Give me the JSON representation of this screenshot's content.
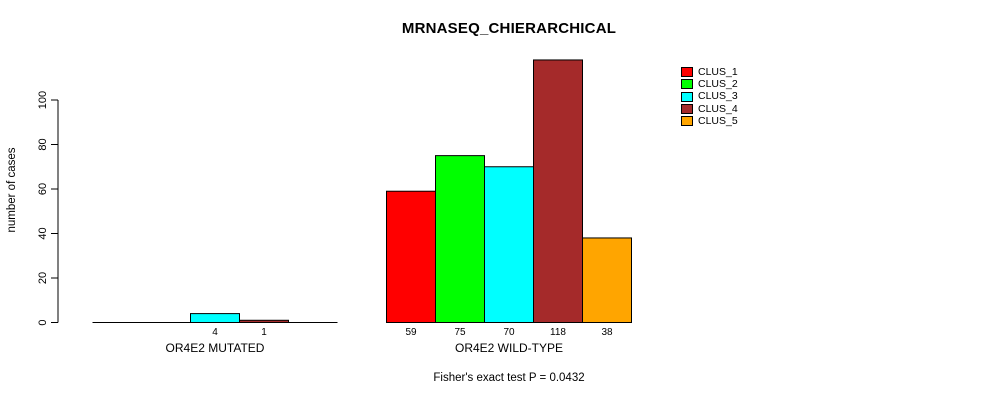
{
  "chart_data": {
    "type": "bar",
    "title": "MRNASEQ_CHIERARCHICAL",
    "ylabel": "number of cases",
    "ylim": [
      0,
      100
    ],
    "yticks": [
      0,
      20,
      40,
      60,
      80,
      100
    ],
    "grid": false,
    "legend_position": "topright",
    "groups": [
      "OR4E2 MUTATED",
      "OR4E2 WILD-TYPE"
    ],
    "series": [
      {
        "name": "CLUS_1",
        "color": "#FF0000",
        "values": [
          0,
          59
        ]
      },
      {
        "name": "CLUS_2",
        "color": "#00FF00",
        "values": [
          0,
          75
        ]
      },
      {
        "name": "CLUS_3",
        "color": "#00FFFF",
        "values": [
          4,
          70
        ]
      },
      {
        "name": "CLUS_4",
        "color": "#A52A2A",
        "values": [
          1,
          118
        ]
      },
      {
        "name": "CLUS_5",
        "color": "#FFA500",
        "values": [
          0,
          38
        ]
      }
    ],
    "bar_value_labels_shown": [
      "4",
      "1",
      "59",
      "75",
      "70",
      "118",
      "38"
    ],
    "annotation": "Fisher's exact test P = 0.0432"
  }
}
